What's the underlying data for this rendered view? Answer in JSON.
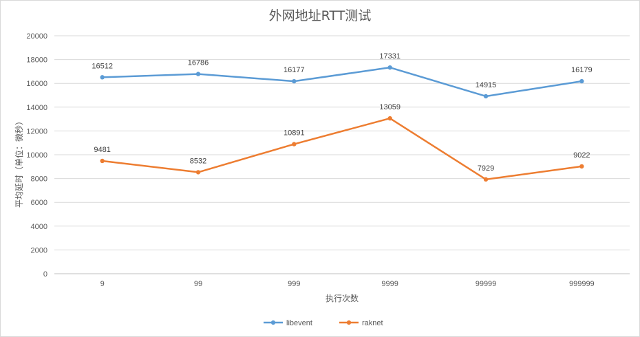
{
  "chart_data": {
    "type": "line",
    "title": "外网地址RTT测试",
    "xlabel": "执行次数",
    "ylabel": "平均延时（单位：微秒）",
    "categories": [
      "9",
      "99",
      "999",
      "9999",
      "99999",
      "999999"
    ],
    "ylim": [
      0,
      20000
    ],
    "yticks": [
      0,
      2000,
      4000,
      6000,
      8000,
      10000,
      12000,
      14000,
      16000,
      18000,
      20000
    ],
    "grid": true,
    "legend": "bottom",
    "series": [
      {
        "name": "libevent",
        "color": "#5b9bd5",
        "values": [
          16512,
          16786,
          16177,
          17331,
          14915,
          16179
        ]
      },
      {
        "name": "raknet",
        "color": "#ed7d31",
        "values": [
          9481,
          8532,
          10891,
          13059,
          7929,
          9022
        ]
      }
    ]
  }
}
